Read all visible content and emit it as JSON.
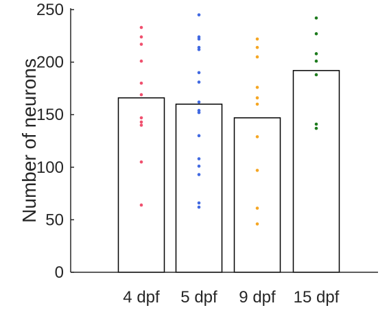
{
  "chart_data": {
    "type": "bar",
    "categories": [
      "4 dpf",
      "5 dpf",
      "9 dpf",
      "15 dpf"
    ],
    "bar_values": [
      166,
      160,
      147,
      192
    ],
    "point_series": [
      {
        "category": "4 dpf",
        "color": "#f0506e",
        "values": [
          233,
          224,
          217,
          201,
          180,
          169,
          147,
          143,
          140,
          105,
          64
        ]
      },
      {
        "category": "5 dpf",
        "color": "#4169e1",
        "values": [
          245,
          224,
          222,
          214,
          212,
          190,
          181,
          162,
          154,
          152,
          130,
          108,
          101,
          93,
          66,
          62
        ]
      },
      {
        "category": "9 dpf",
        "color": "#f5a623",
        "values": [
          222,
          214,
          205,
          176,
          166,
          160,
          129,
          97,
          61,
          46
        ]
      },
      {
        "category": "15 dpf",
        "color": "#1e7b1e",
        "values": [
          242,
          227,
          208,
          201,
          188,
          141,
          137
        ]
      }
    ],
    "ylabel": "Number of neurons",
    "xlabel": "",
    "ylim": [
      0,
      250
    ],
    "yticks": [
      0,
      50,
      100,
      150,
      200,
      250
    ],
    "grid": false,
    "legend": "none",
    "bar_fill": "#ffffff",
    "bar_stroke": "#000000",
    "axis_color": "#262626"
  }
}
